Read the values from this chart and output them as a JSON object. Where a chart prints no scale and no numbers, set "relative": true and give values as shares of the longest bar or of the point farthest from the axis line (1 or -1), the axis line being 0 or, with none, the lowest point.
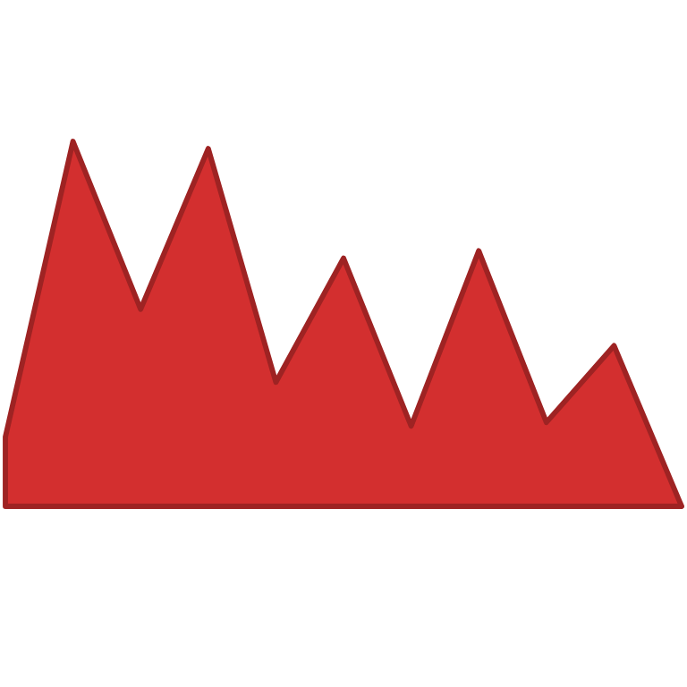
{
  "chart_data": {
    "type": "area",
    "relative": true,
    "categories": [
      null,
      null,
      null,
      null,
      null,
      null,
      null,
      null,
      null,
      null,
      null
    ],
    "series": [
      {
        "color": "#d32f2f",
        "values": [
          0.19,
          1,
          0.54,
          0.98,
          0.34,
          0.68,
          0.22,
          0.7,
          0.23,
          0.44,
          0
        ]
      }
    ]
  }
}
